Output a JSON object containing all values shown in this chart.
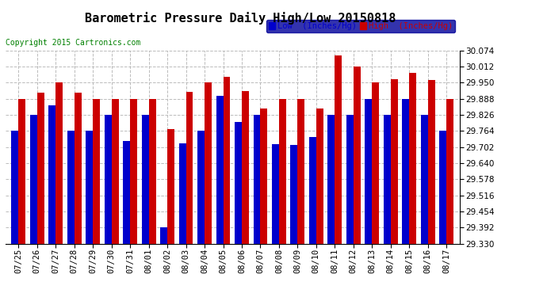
{
  "title": "Barometric Pressure Daily High/Low 20150818",
  "copyright": "Copyright 2015 Cartronics.com",
  "legend_low": "Low  (Inches/Hg)",
  "legend_high": "High  (Inches/Hg)",
  "dates": [
    "07/25",
    "07/26",
    "07/27",
    "07/28",
    "07/29",
    "07/30",
    "07/31",
    "08/01",
    "08/02",
    "08/03",
    "08/04",
    "08/05",
    "08/06",
    "08/07",
    "08/08",
    "08/09",
    "08/10",
    "08/11",
    "08/12",
    "08/13",
    "08/14",
    "08/15",
    "08/16",
    "08/17"
  ],
  "low": [
    29.764,
    29.826,
    29.864,
    29.764,
    29.764,
    29.826,
    29.726,
    29.826,
    29.392,
    29.715,
    29.764,
    29.9,
    29.8,
    29.826,
    29.714,
    29.71,
    29.74,
    29.826,
    29.826,
    29.888,
    29.826,
    29.888,
    29.826,
    29.764
  ],
  "high": [
    29.888,
    29.912,
    29.95,
    29.912,
    29.888,
    29.888,
    29.888,
    29.888,
    29.77,
    29.916,
    29.95,
    29.974,
    29.918,
    29.85,
    29.888,
    29.888,
    29.85,
    30.054,
    30.012,
    29.95,
    29.963,
    29.988,
    29.96,
    29.888
  ],
  "ylim": [
    29.33,
    30.074
  ],
  "yticks": [
    29.33,
    29.392,
    29.454,
    29.516,
    29.578,
    29.64,
    29.702,
    29.764,
    29.826,
    29.888,
    29.95,
    30.012,
    30.074
  ],
  "bar_color_low": "#0000cc",
  "bar_color_high": "#cc0000",
  "background_color": "#ffffff",
  "grid_color": "#bbbbbb",
  "title_fontsize": 11,
  "copyright_fontsize": 7,
  "tick_fontsize": 7.5,
  "legend_fontsize": 7.5,
  "legend_bg": "#000099"
}
